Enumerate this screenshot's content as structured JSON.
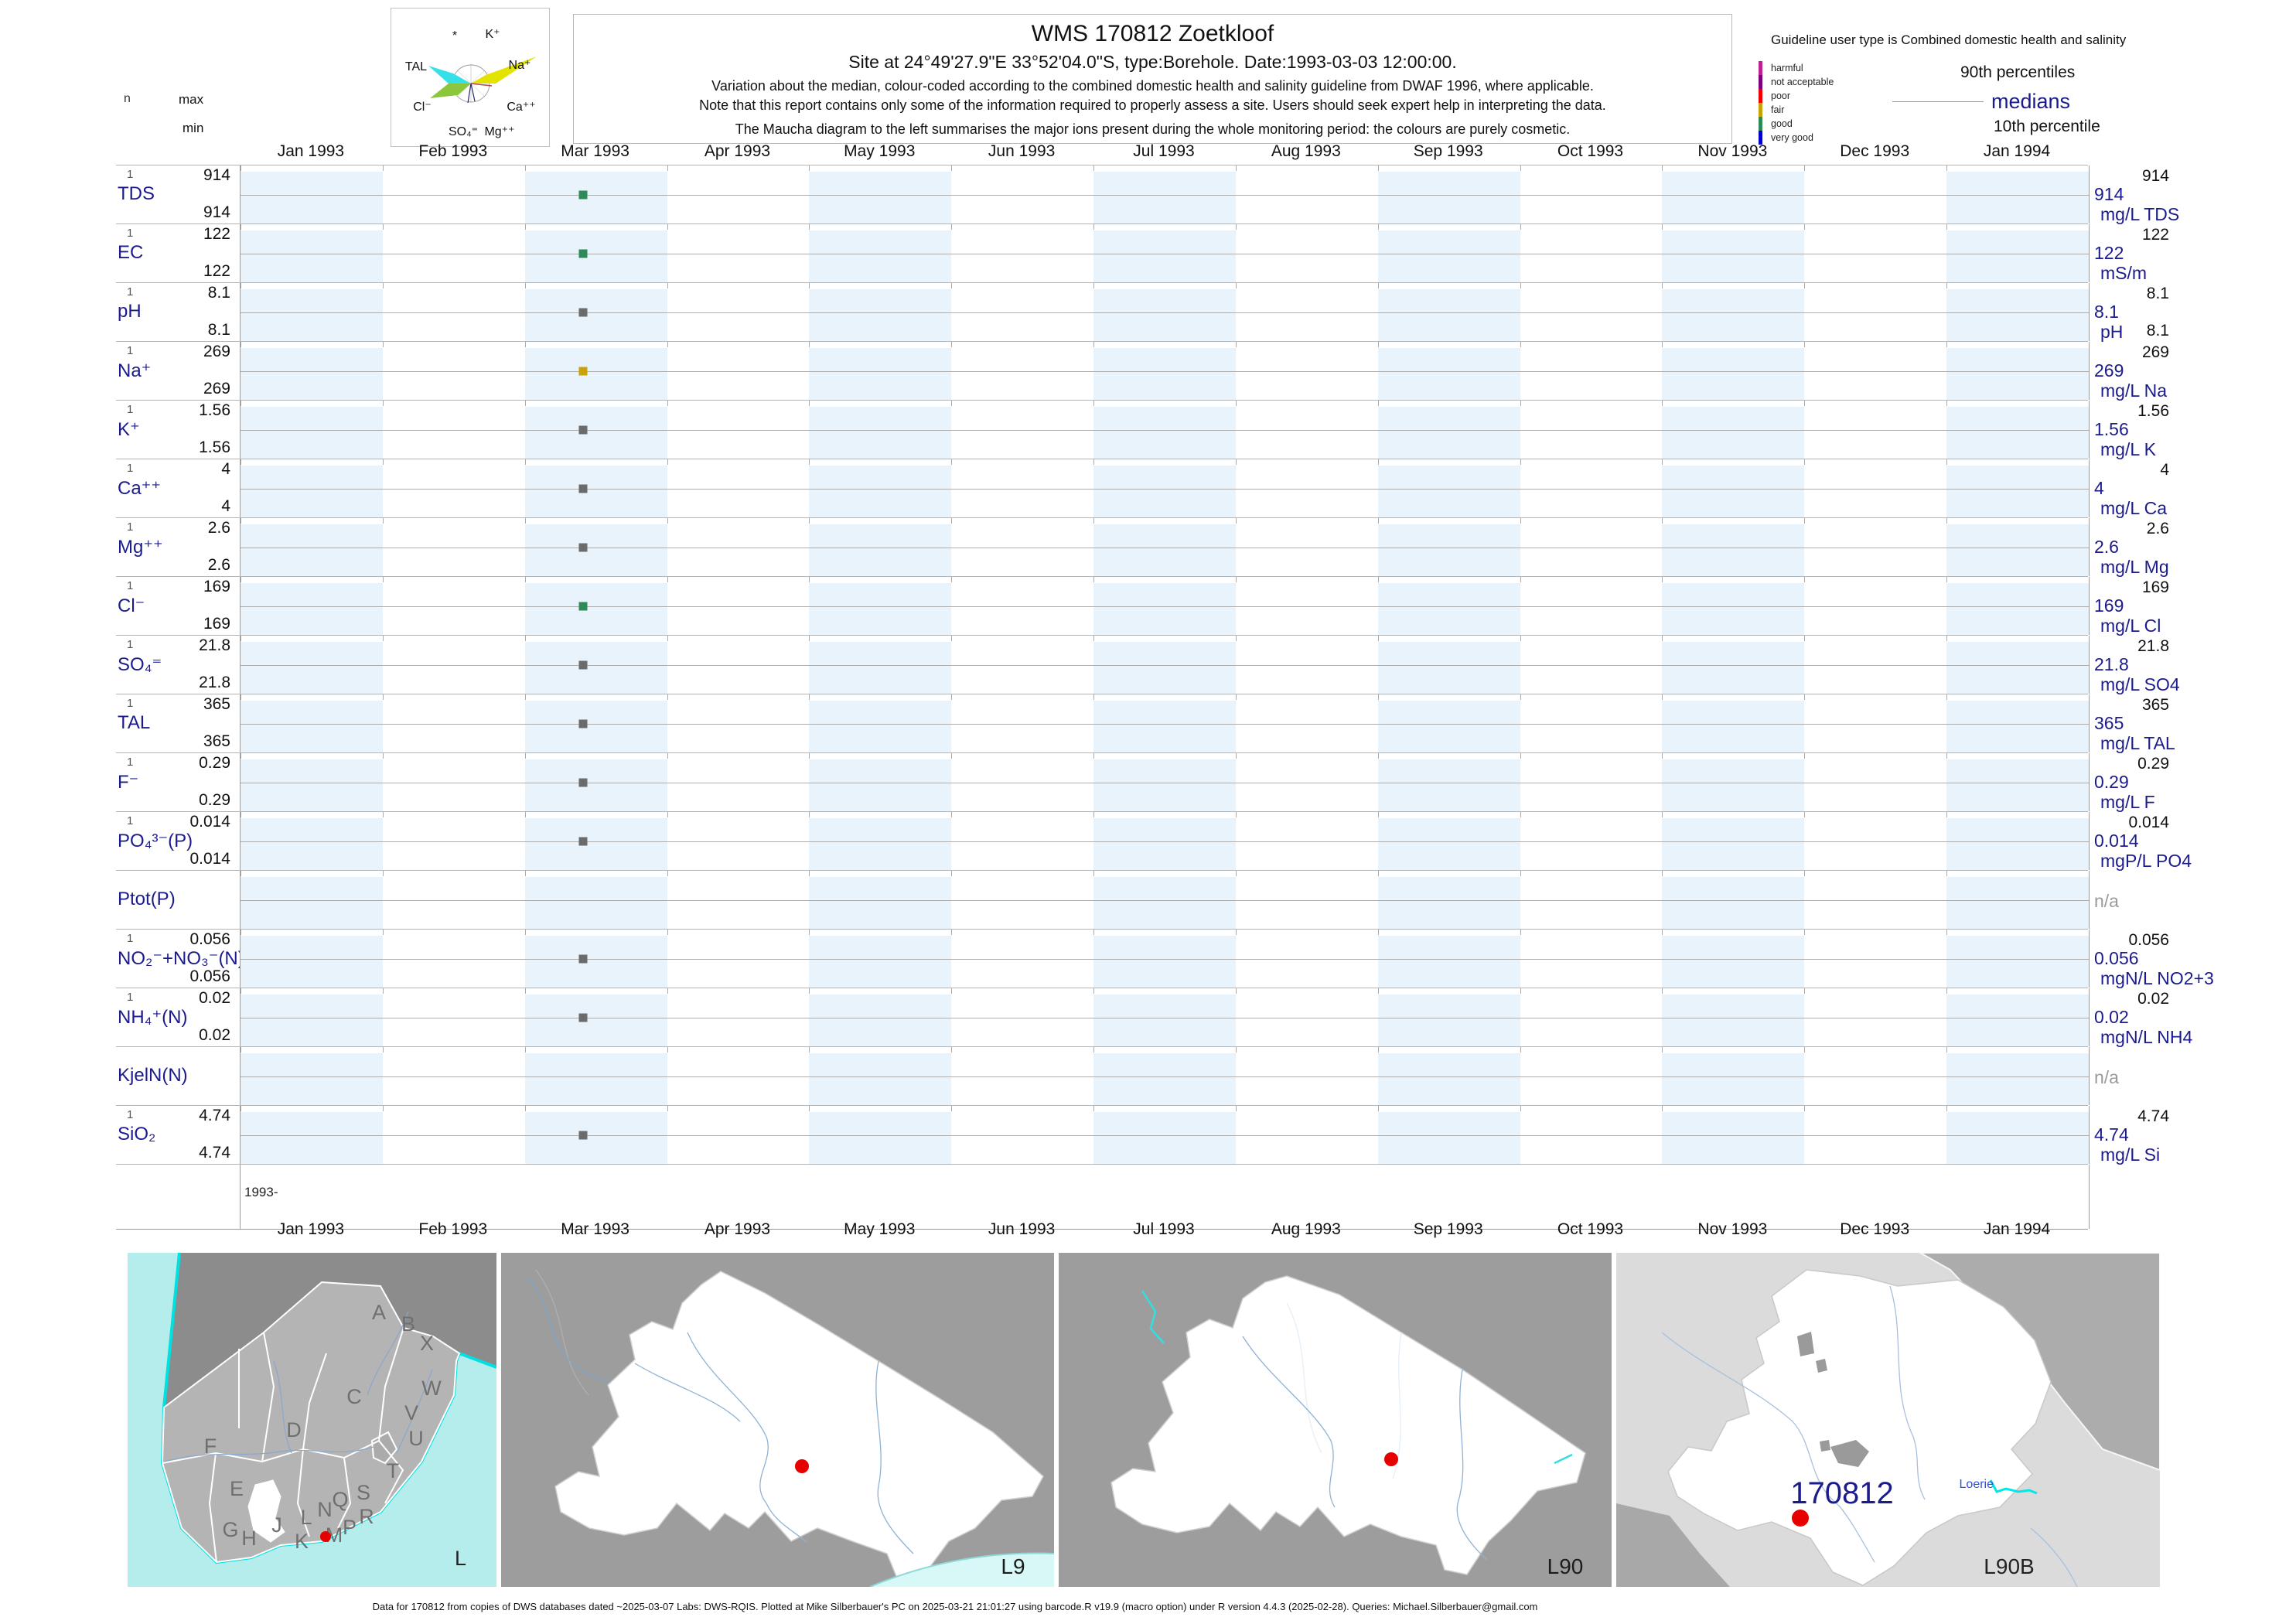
{
  "maucha": {
    "star": "*",
    "k": "K⁺",
    "tal": "TAL",
    "na": "Na⁺",
    "cl": "Cl⁻",
    "ca": "Ca⁺⁺",
    "so4": "SO₄⁼",
    "mg": "Mg⁺⁺"
  },
  "title": {
    "line1": "WMS 170812  Zoetkloof",
    "line2": "Site at 24°49'27.9\"E 33°52'04.0\"S, type:Borehole. Date:1993-03-03 12:00:00.",
    "line3": "Variation about the median,  colour-coded according to the combined domestic health and salinity guideline from DWAF 1996, where applicable.",
    "line4": "Note that this report contains only some of the information required to properly assess a site. Users should seek expert help in interpreting the data.",
    "line5": "The Maucha diagram to the left summarises the major ions present during the whole monitoring period: the colours are purely cosmetic."
  },
  "guideline": {
    "heading": "Guideline user type is Combined domestic health and salinity",
    "classes": [
      {
        "label": "harmful",
        "color": "#C2208E"
      },
      {
        "label": "not acceptable",
        "color": "#7D007D"
      },
      {
        "label": "poor",
        "color": "#F00000"
      },
      {
        "label": "fair",
        "color": "#C8A206"
      },
      {
        "label": "good",
        "color": "#2E8B57"
      },
      {
        "label": "very good",
        "color": "#0000C8"
      }
    ],
    "p90_label": "90th percentiles",
    "median_label": "medians",
    "p10_label": "10th percentile"
  },
  "axis": {
    "n_header": "n",
    "max_header": "max",
    "min_header": "min",
    "partial_year_label": "1993-",
    "months": [
      "Jan 1993",
      "Feb 1993",
      "Mar 1993",
      "Apr 1993",
      "May 1993",
      "Jun 1993",
      "Jul 1993",
      "Aug 1993",
      "Sep 1993",
      "Oct 1993",
      "Nov 1993",
      "Dec 1993",
      "Jan 1994"
    ]
  },
  "rows": [
    {
      "name": "TDS",
      "n": "1",
      "max": "914",
      "min": "914",
      "p90": "914",
      "median": "914",
      "unit": "mg/L TDS",
      "p10": "",
      "na_label": "",
      "marker": "#2E8B57",
      "na": false
    },
    {
      "name": "EC",
      "n": "1",
      "max": "122",
      "min": "122",
      "p90": "122",
      "median": "122",
      "unit": "mS/m",
      "p10": "",
      "na_label": "",
      "marker": "#2E8B57",
      "na": false
    },
    {
      "name": "pH",
      "n": "1",
      "max": "8.1",
      "min": "8.1",
      "p90": "8.1",
      "median": "8.1",
      "unit": "pH",
      "p10": "8.1",
      "na_label": "",
      "marker": "#6B6B6B",
      "na": false
    },
    {
      "name": "Na⁺",
      "n": "1",
      "max": "269",
      "min": "269",
      "p90": "269",
      "median": "269",
      "unit": "mg/L Na",
      "p10": "",
      "na_label": "",
      "marker": "#C8A206",
      "na": false
    },
    {
      "name": "K⁺",
      "n": "1",
      "max": "1.56",
      "min": "1.56",
      "p90": "1.56",
      "median": "1.56",
      "unit": "mg/L K",
      "p10": "",
      "na_label": "",
      "marker": "#6B6B6B",
      "na": false
    },
    {
      "name": "Ca⁺⁺",
      "n": "1",
      "max": "4",
      "min": "4",
      "p90": "4",
      "median": "4",
      "unit": "mg/L Ca",
      "p10": "",
      "na_label": "",
      "marker": "#6B6B6B",
      "na": false
    },
    {
      "name": "Mg⁺⁺",
      "n": "1",
      "max": "2.6",
      "min": "2.6",
      "p90": "2.6",
      "median": "2.6",
      "unit": "mg/L Mg",
      "p10": "",
      "na_label": "",
      "marker": "#6B6B6B",
      "na": false
    },
    {
      "name": "Cl⁻",
      "n": "1",
      "max": "169",
      "min": "169",
      "p90": "169",
      "median": "169",
      "unit": "mg/L Cl",
      "p10": "",
      "na_label": "",
      "marker": "#2E8B57",
      "na": false
    },
    {
      "name": "SO₄⁼",
      "n": "1",
      "max": "21.8",
      "min": "21.8",
      "p90": "21.8",
      "median": "21.8",
      "unit": "mg/L SO4",
      "p10": "",
      "na_label": "",
      "marker": "#6B6B6B",
      "na": false
    },
    {
      "name": "TAL",
      "n": "1",
      "max": "365",
      "min": "365",
      "p90": "365",
      "median": "365",
      "unit": "mg/L TAL",
      "p10": "",
      "na_label": "",
      "marker": "#6B6B6B",
      "na": false
    },
    {
      "name": "F⁻",
      "n": "1",
      "max": "0.29",
      "min": "0.29",
      "p90": "0.29",
      "median": "0.29",
      "unit": "mg/L F",
      "p10": "",
      "na_label": "",
      "marker": "#6B6B6B",
      "na": false
    },
    {
      "name": "PO₄³⁻(P)",
      "n": "1",
      "max": "0.014",
      "min": "0.014",
      "p90": "0.014",
      "median": "0.014",
      "unit": "mgP/L PO4",
      "p10": "",
      "na_label": "",
      "marker": "#6B6B6B",
      "na": false
    },
    {
      "name": "Ptot(P)",
      "n": "",
      "max": "",
      "min": "",
      "p90": "",
      "median": "",
      "unit": "",
      "p10": "",
      "na_label": "n/a",
      "marker": null,
      "na": true
    },
    {
      "name": "NO₂⁻+NO₃⁻(N)",
      "n": "1",
      "max": "0.056",
      "min": "0.056",
      "p90": "0.056",
      "median": "0.056",
      "unit": "mgN/L NO2+3",
      "p10": "",
      "na_label": "",
      "marker": "#6B6B6B",
      "na": false
    },
    {
      "name": "NH₄⁺(N)",
      "n": "1",
      "max": "0.02",
      "min": "0.02",
      "p90": "0.02",
      "median": "0.02",
      "unit": "mgN/L NH4",
      "p10": "",
      "na_label": "",
      "marker": "#6B6B6B",
      "na": false
    },
    {
      "name": "KjelN(N)",
      "n": "",
      "max": "",
      "min": "",
      "p90": "",
      "median": "",
      "unit": "",
      "p10": "",
      "na_label": "n/a",
      "marker": null,
      "na": true
    },
    {
      "name": "SiO₂",
      "n": "1",
      "max": "4.74",
      "min": "4.74",
      "p90": "4.74",
      "median": "4.74",
      "unit": "mg/L Si",
      "p10": "",
      "na_label": "",
      "marker": "#6B6B6B",
      "na": false
    }
  ],
  "maps": [
    {
      "label": "L",
      "letters": [
        "A",
        "B",
        "C",
        "D",
        "E",
        "F",
        "G",
        "H",
        "J",
        "K",
        "L",
        "M",
        "N",
        "P",
        "Q",
        "R",
        "S",
        "T",
        "U",
        "V",
        "W",
        "X"
      ]
    },
    {
      "label": "L9"
    },
    {
      "label": "L90"
    },
    {
      "label": "L90B",
      "site_label": "170812",
      "place_label": "Loerie"
    }
  ],
  "footer": "Data for 170812 from copies of DWS databases dated ~2025-03-07 Labs: DWS-RQIS. Plotted at Mike Silberbauer's PC on 2025-03-21 21:01:27 using barcode.R v19.9 (macro option) under R version 4.4.3 (2025-02-28). Queries: Michael.Silberbauer@gmail.com",
  "chart_data": {
    "type": "scatter",
    "title": "WMS 170812 Zoetkloof",
    "x_axis_months": [
      "Jan 1993",
      "Feb 1993",
      "Mar 1993",
      "Apr 1993",
      "May 1993",
      "Jun 1993",
      "Jul 1993",
      "Aug 1993",
      "Sep 1993",
      "Oct 1993",
      "Nov 1993",
      "Dec 1993",
      "Jan 1994"
    ],
    "sample_date": "1993-03-03",
    "legend": {
      "top": "90th percentiles",
      "middle": "medians",
      "bottom": "10th percentile"
    },
    "series": [
      {
        "parameter": "TDS",
        "unit": "mg/L TDS",
        "n": 1,
        "values": [
          914
        ],
        "median": 914,
        "p90": 914,
        "p10": 914,
        "max": 914,
        "min": 914,
        "guideline_class": "good"
      },
      {
        "parameter": "EC",
        "unit": "mS/m",
        "n": 1,
        "values": [
          122
        ],
        "median": 122,
        "p90": 122,
        "p10": 122,
        "max": 122,
        "min": 122,
        "guideline_class": "good"
      },
      {
        "parameter": "pH",
        "unit": "pH",
        "n": 1,
        "values": [
          8.1
        ],
        "median": 8.1,
        "p90": 8.1,
        "p10": 8.1,
        "max": 8.1,
        "min": 8.1,
        "guideline_class": "none"
      },
      {
        "parameter": "Na",
        "unit": "mg/L Na",
        "n": 1,
        "values": [
          269
        ],
        "median": 269,
        "p90": 269,
        "p10": 269,
        "max": 269,
        "min": 269,
        "guideline_class": "fair"
      },
      {
        "parameter": "K",
        "unit": "mg/L K",
        "n": 1,
        "values": [
          1.56
        ],
        "median": 1.56,
        "p90": 1.56,
        "p10": 1.56,
        "max": 1.56,
        "min": 1.56,
        "guideline_class": "none"
      },
      {
        "parameter": "Ca",
        "unit": "mg/L Ca",
        "n": 1,
        "values": [
          4
        ],
        "median": 4,
        "p90": 4,
        "p10": 4,
        "max": 4,
        "min": 4,
        "guideline_class": "none"
      },
      {
        "parameter": "Mg",
        "unit": "mg/L Mg",
        "n": 1,
        "values": [
          2.6
        ],
        "median": 2.6,
        "p90": 2.6,
        "p10": 2.6,
        "max": 2.6,
        "min": 2.6,
        "guideline_class": "none"
      },
      {
        "parameter": "Cl",
        "unit": "mg/L Cl",
        "n": 1,
        "values": [
          169
        ],
        "median": 169,
        "p90": 169,
        "p10": 169,
        "max": 169,
        "min": 169,
        "guideline_class": "good"
      },
      {
        "parameter": "SO4",
        "unit": "mg/L SO4",
        "n": 1,
        "values": [
          21.8
        ],
        "median": 21.8,
        "p90": 21.8,
        "p10": 21.8,
        "max": 21.8,
        "min": 21.8,
        "guideline_class": "none"
      },
      {
        "parameter": "TAL",
        "unit": "mg/L TAL",
        "n": 1,
        "values": [
          365
        ],
        "median": 365,
        "p90": 365,
        "p10": 365,
        "max": 365,
        "min": 365,
        "guideline_class": "none"
      },
      {
        "parameter": "F",
        "unit": "mg/L F",
        "n": 1,
        "values": [
          0.29
        ],
        "median": 0.29,
        "p90": 0.29,
        "p10": 0.29,
        "max": 0.29,
        "min": 0.29,
        "guideline_class": "none"
      },
      {
        "parameter": "PO4",
        "unit": "mgP/L PO4",
        "n": 1,
        "values": [
          0.014
        ],
        "median": 0.014,
        "p90": 0.014,
        "p10": 0.014,
        "max": 0.014,
        "min": 0.014,
        "guideline_class": "none"
      },
      {
        "parameter": "Ptot",
        "unit": "",
        "n": 0,
        "values": [],
        "median": null,
        "guideline_class": "n/a"
      },
      {
        "parameter": "NO2+NO3",
        "unit": "mgN/L NO2+3",
        "n": 1,
        "values": [
          0.056
        ],
        "median": 0.056,
        "p90": 0.056,
        "p10": 0.056,
        "max": 0.056,
        "min": 0.056,
        "guideline_class": "none"
      },
      {
        "parameter": "NH4",
        "unit": "mgN/L NH4",
        "n": 1,
        "values": [
          0.02
        ],
        "median": 0.02,
        "p90": 0.02,
        "p10": 0.02,
        "max": 0.02,
        "min": 0.02,
        "guideline_class": "none"
      },
      {
        "parameter": "KjelN",
        "unit": "",
        "n": 0,
        "values": [],
        "median": null,
        "guideline_class": "n/a"
      },
      {
        "parameter": "SiO2",
        "unit": "mg/L Si",
        "n": 1,
        "values": [
          4.74
        ],
        "median": 4.74,
        "p90": 4.74,
        "p10": 4.74,
        "max": 4.74,
        "min": 4.74,
        "guideline_class": "none"
      }
    ]
  }
}
